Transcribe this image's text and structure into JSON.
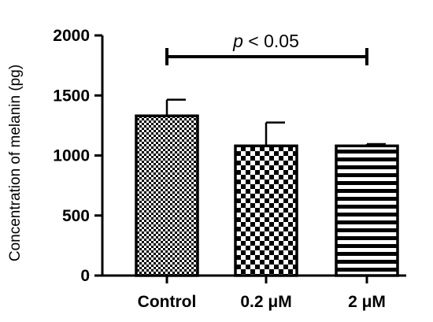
{
  "chart_data": {
    "type": "bar",
    "categories": [
      "Control",
      "0.2 μM",
      "2 μM"
    ],
    "values": [
      1330,
      1080,
      1080
    ],
    "errors": [
      135,
      195,
      15
    ],
    "ylabel": "Concentration of melanin (pg)",
    "xlabel": "",
    "ylim": [
      0,
      2000
    ],
    "yticks": [
      0,
      500,
      1000,
      1500,
      2000
    ],
    "grid": false,
    "bar_patterns": [
      "fine-checker",
      "coarse-checker",
      "horizontal-stripes"
    ],
    "annotation": {
      "prefix": "p",
      "text": " < 0.05",
      "bracket_from": "Control",
      "bracket_to": "2 μM"
    },
    "colors": {
      "bar_fill": "#000000",
      "bar_background": "#ffffff",
      "axis": "#000000"
    }
  }
}
